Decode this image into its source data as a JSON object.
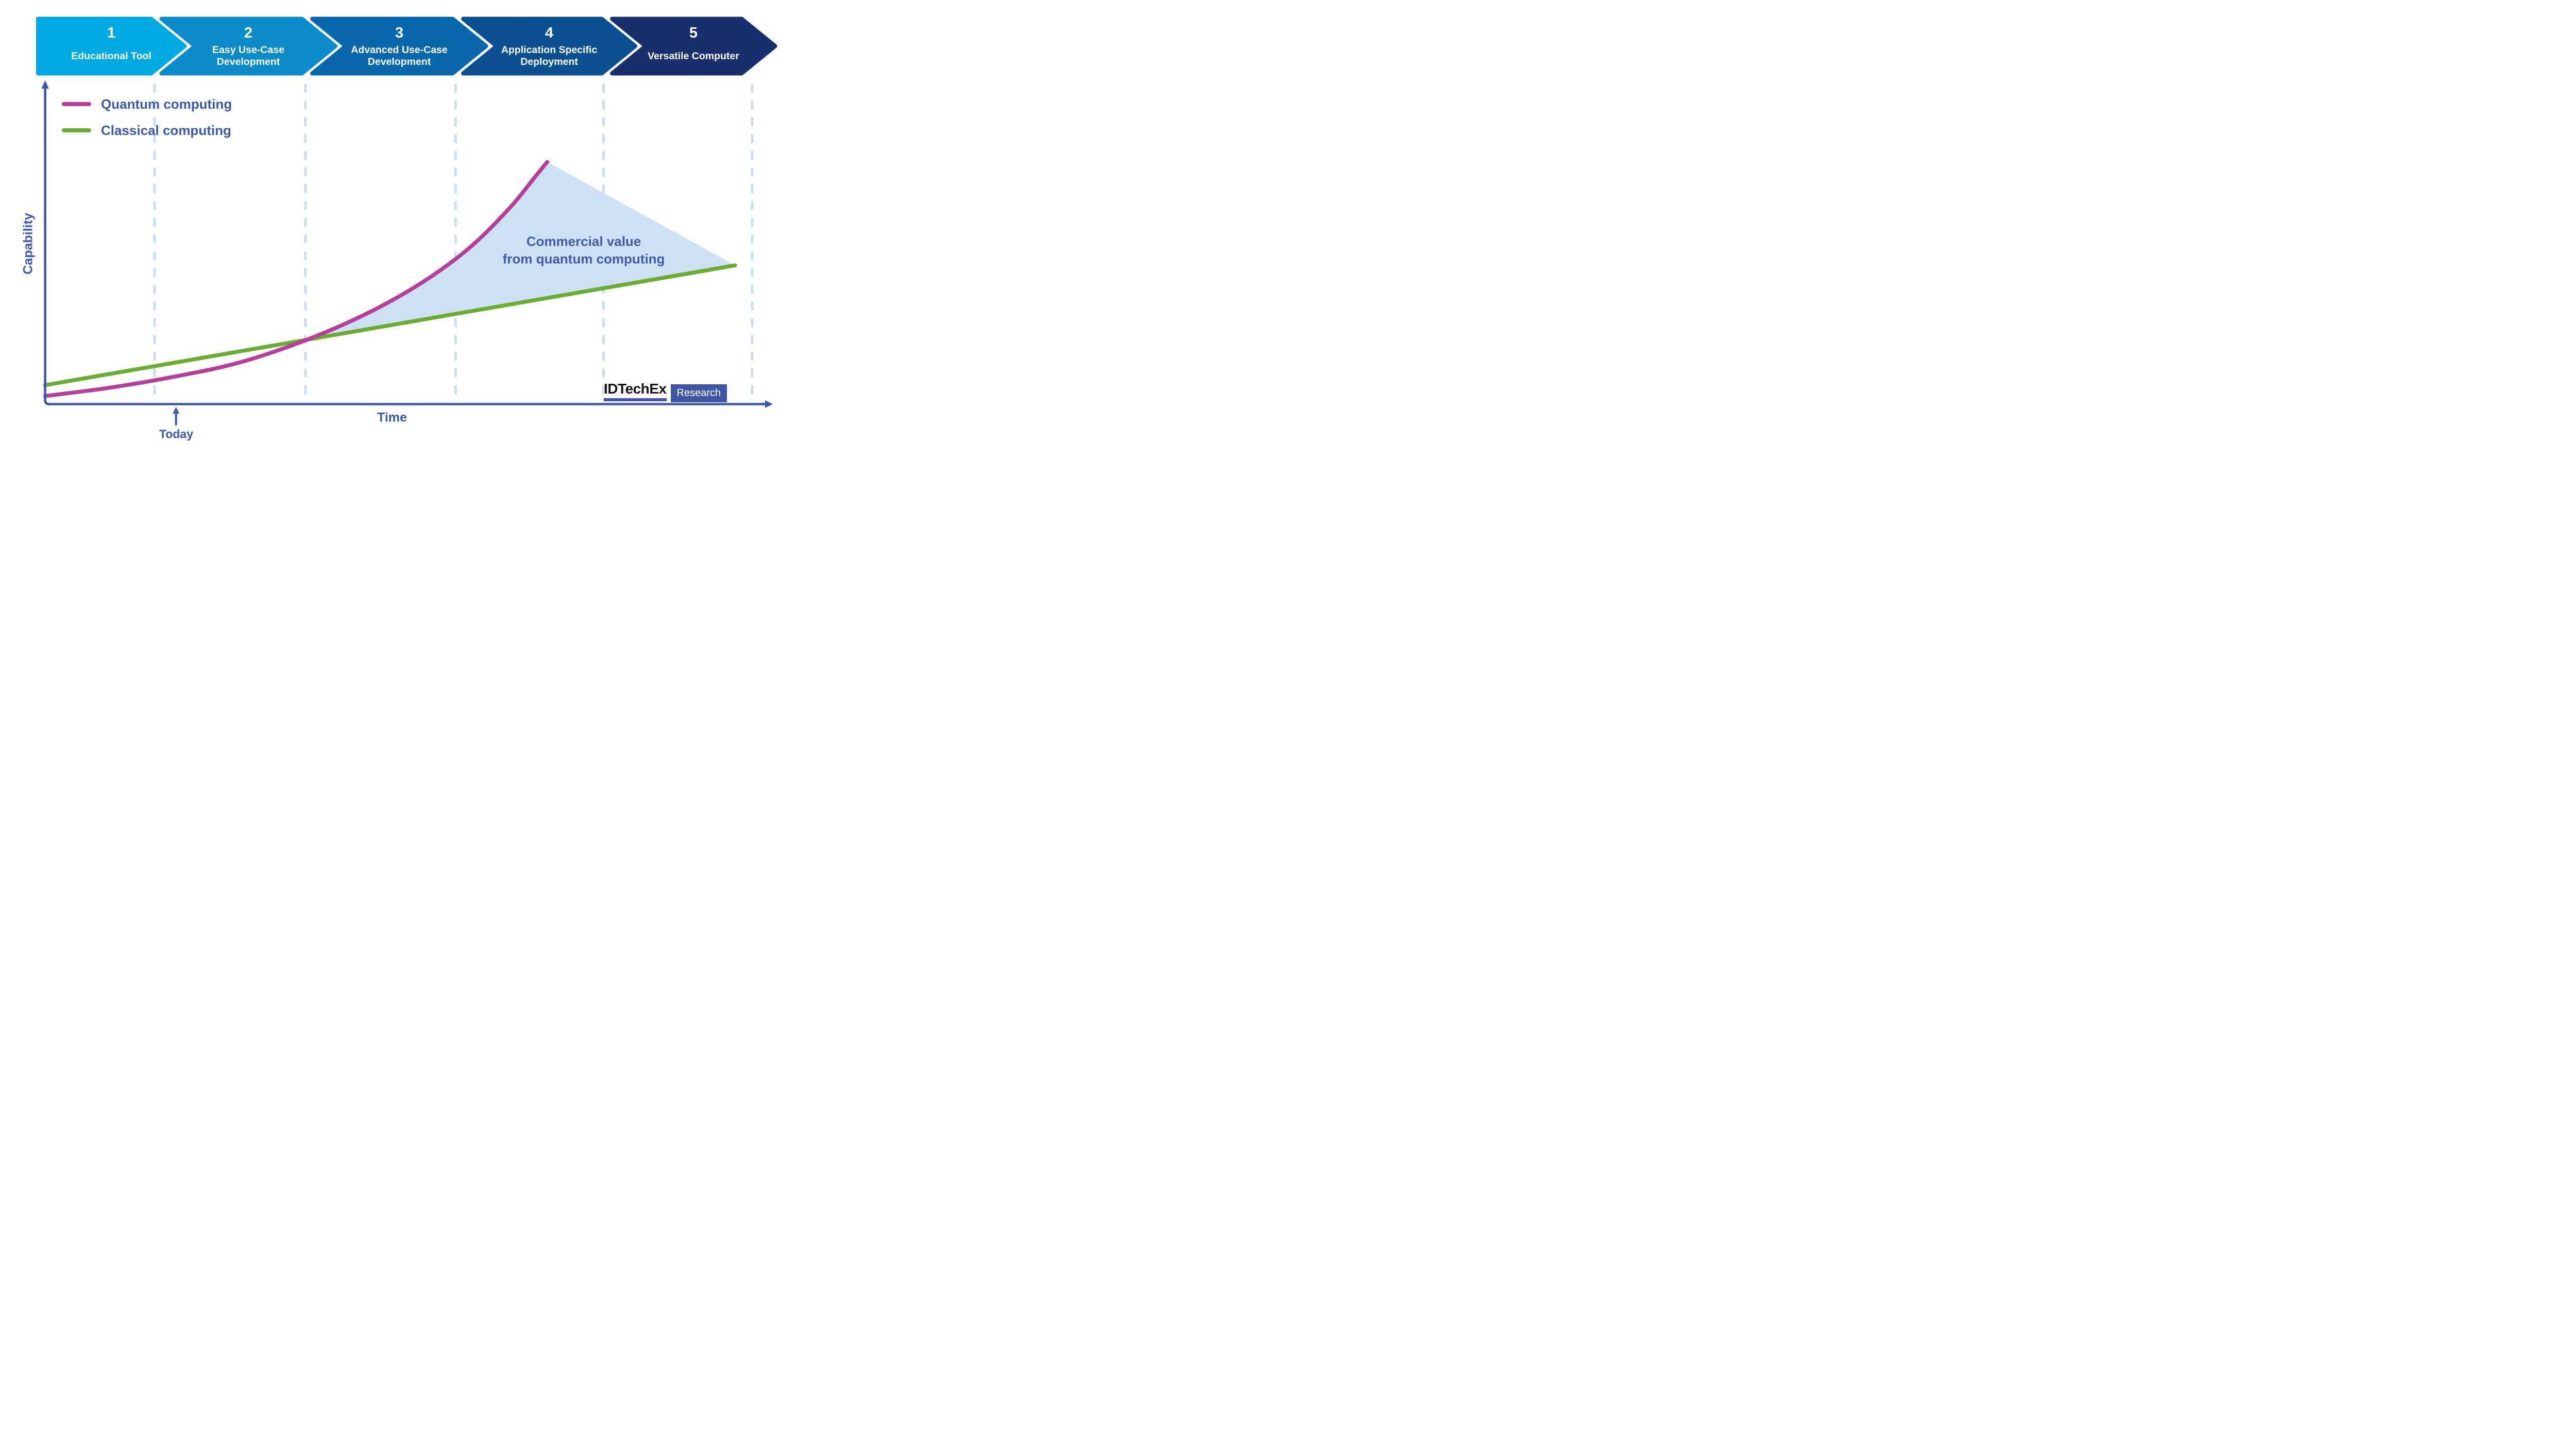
{
  "banner": {
    "stages": [
      {
        "number": "1",
        "label": "Educational Tool",
        "color": "#00A9E2"
      },
      {
        "number": "2",
        "label": "Easy Use-Case\nDevelopment",
        "color": "#0D8BC9"
      },
      {
        "number": "3",
        "label": "Advanced Use-Case\nDevelopment",
        "color": "#0968AB"
      },
      {
        "number": "4",
        "label": "Application Specific\nDeployment",
        "color": "#0B5191"
      },
      {
        "number": "5",
        "label": "Versatile Computer",
        "color": "#1A2F6E"
      }
    ]
  },
  "legend": {
    "items": [
      {
        "label": "Quantum computing",
        "color": "#B5409A"
      },
      {
        "label": "Classical computing",
        "color": "#69AD33"
      }
    ]
  },
  "axes": {
    "y_label": "Capability",
    "x_label": "Time",
    "today_label": "Today",
    "color": "#3A59A8"
  },
  "annotation": {
    "text": "Commercial value\nfrom quantum computing",
    "color": "#3E5DA9"
  },
  "logo": {
    "brand": "IDTechEx",
    "suffix": "Research",
    "accent": "#4055A3"
  },
  "chart_data": {
    "type": "line",
    "title": "Quantum computing vs classical computing capability over time (conceptual roadmap)",
    "xlabel": "Time",
    "ylabel": "Capability",
    "x_range": [
      0,
      100
    ],
    "y_range": [
      0,
      100
    ],
    "grid": "vertical dashed lines at stage boundaries only",
    "legend_position": "top-left",
    "gridlines_x": [
      14.8,
      35.2,
      55.5,
      75.5,
      95.6
    ],
    "gridline_color": "#C9DDF2",
    "today_x": 17.7,
    "series": [
      {
        "name": "Quantum computing",
        "color": "#B5409A",
        "points": [
          [
            0,
            2.5
          ],
          [
            9,
            5.2
          ],
          [
            17.6,
            8.6
          ],
          [
            26.2,
            12.9
          ],
          [
            34.9,
            19.6
          ],
          [
            43.5,
            28.2
          ],
          [
            51,
            37.9
          ],
          [
            57.5,
            48.9
          ],
          [
            62.9,
            61.3
          ],
          [
            66.4,
            71.2
          ],
          [
            67.9,
            75.4
          ]
        ]
      },
      {
        "name": "Classical computing",
        "color": "#69AD33",
        "points": [
          [
            0,
            5.9
          ],
          [
            93.3,
            43.2
          ]
        ]
      }
    ],
    "crossover": {
      "x": 34.9,
      "y": 19.7
    },
    "value_region": {
      "label": "Commercial value\nfrom quantum computing",
      "fill": "#CDE0F4",
      "from_x": 34.9,
      "bounds": "area between quantum curve (top) and classical line (bottom), closed by straight edge from quantum endpoint to classical endpoint"
    }
  }
}
